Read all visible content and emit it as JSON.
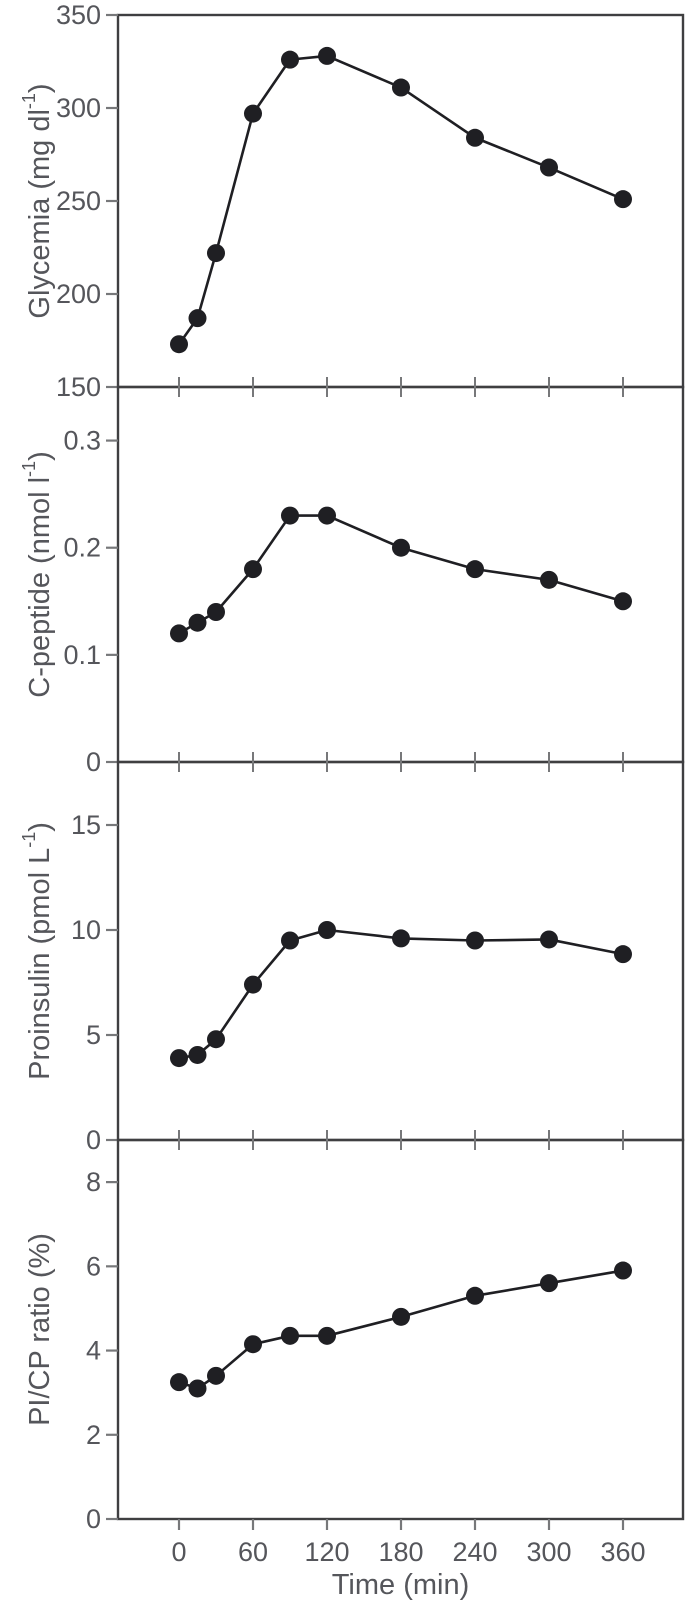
{
  "figure": {
    "xlabel": "Time (min)",
    "x_tick_labels": [
      "0",
      "60",
      "120",
      "180",
      "240",
      "300",
      "360"
    ]
  },
  "style": {
    "background": "#ffffff",
    "line_color": "#1f1f23",
    "marker_color": "#1f1f23",
    "axis_frame_color": "#3f3f41",
    "tick_color": "#77787a",
    "text_color": "#55565b"
  },
  "chart_data": [
    {
      "type": "line",
      "panel": "glycemia",
      "ylabel": "Glycemia (mg dl⁻¹)",
      "ylabel_parts": {
        "pre": "Glycemia (mg dl",
        "sup": "-1",
        "post": ")"
      },
      "x": [
        0,
        15,
        30,
        60,
        90,
        120,
        180,
        240,
        300,
        360
      ],
      "values": [
        173,
        187,
        222,
        297,
        326,
        328,
        311,
        284,
        268,
        251
      ],
      "ylim": [
        150,
        350
      ],
      "yticks": [
        150,
        200,
        250,
        300,
        350
      ],
      "ytick_labels": [
        "150",
        "200",
        "250",
        "300",
        "350"
      ],
      "xlim": [
        -50,
        409
      ],
      "xticks": [
        0,
        60,
        120,
        180,
        240,
        300,
        360
      ],
      "grid": false,
      "legend": "none",
      "marker": "filled-circle"
    },
    {
      "type": "line",
      "panel": "c-peptide",
      "ylabel": "C-peptide (nmol l⁻¹)",
      "ylabel_parts": {
        "pre": "C-peptide (nmol l",
        "sup": "-1",
        "post": ")"
      },
      "x": [
        0,
        15,
        30,
        60,
        90,
        120,
        180,
        240,
        300,
        360
      ],
      "values": [
        0.12,
        0.13,
        0.14,
        0.18,
        0.23,
        0.23,
        0.2,
        0.18,
        0.17,
        0.15
      ],
      "ylim": [
        0,
        0.35
      ],
      "yticks": [
        0,
        0.1,
        0.2,
        0.3
      ],
      "ytick_labels": [
        "0",
        "0.1",
        "0.2",
        "0.3"
      ],
      "xlim": [
        -50,
        409
      ],
      "xticks": [
        0,
        60,
        120,
        180,
        240,
        300,
        360
      ],
      "grid": false,
      "legend": "none",
      "marker": "filled-circle"
    },
    {
      "type": "line",
      "panel": "proinsulin",
      "ylabel": "Proinsulin (pmol L⁻¹)",
      "ylabel_parts": {
        "pre": "Proinsulin (pmol L",
        "sup": "-1",
        "post": ")"
      },
      "x": [
        0,
        15,
        30,
        60,
        90,
        120,
        180,
        240,
        300,
        360
      ],
      "values": [
        3.9,
        4.05,
        4.8,
        7.4,
        9.5,
        10.0,
        9.6,
        9.5,
        9.55,
        8.85
      ],
      "ylim": [
        0,
        18
      ],
      "yticks": [
        0,
        5,
        10,
        15
      ],
      "ytick_labels": [
        "0",
        "5",
        "10",
        "15"
      ],
      "xlim": [
        -50,
        409
      ],
      "xticks": [
        0,
        60,
        120,
        180,
        240,
        300,
        360
      ],
      "grid": false,
      "legend": "none",
      "marker": "filled-circle"
    },
    {
      "type": "line",
      "panel": "pi-cp-ratio",
      "ylabel": "PI/CP ratio (%)",
      "ylabel_parts": {
        "pre": "PI/CP ratio (%)",
        "sup": "",
        "post": ""
      },
      "x": [
        0,
        15,
        30,
        60,
        90,
        120,
        180,
        240,
        300,
        360
      ],
      "values": [
        3.25,
        3.1,
        3.4,
        4.15,
        4.35,
        4.35,
        4.8,
        5.3,
        5.6,
        5.9
      ],
      "ylim": [
        0,
        9
      ],
      "yticks": [
        0,
        2,
        4,
        6,
        8
      ],
      "ytick_labels": [
        "0",
        "2",
        "4",
        "6",
        "8"
      ],
      "xlim": [
        -50,
        409
      ],
      "xticks": [
        0,
        60,
        120,
        180,
        240,
        300,
        360
      ],
      "grid": false,
      "legend": "none",
      "marker": "filled-circle"
    }
  ]
}
